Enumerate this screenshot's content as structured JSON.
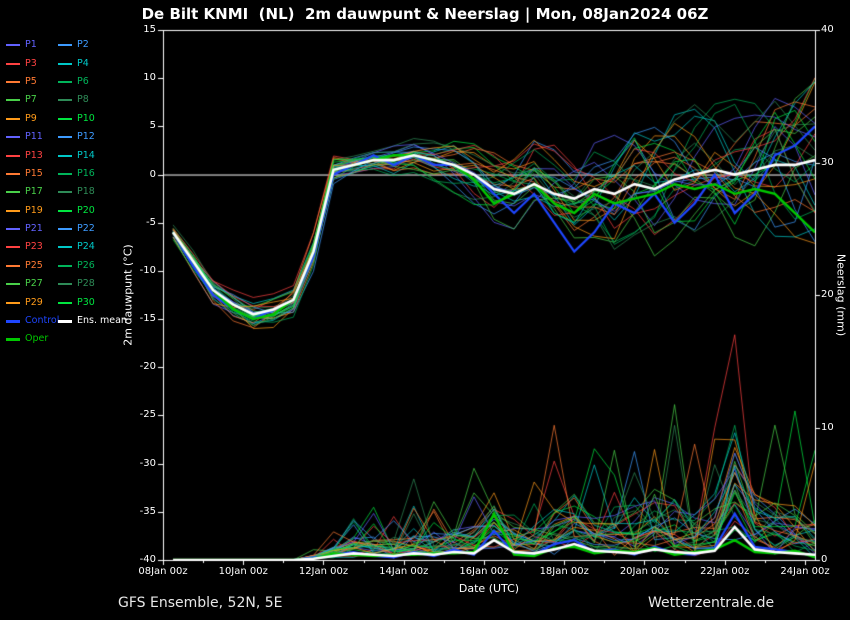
{
  "footer": {
    "left": "GFS Ensemble, 52N, 5E",
    "right": "Wetterzentrale.de"
  },
  "chart_data": {
    "type": "line",
    "title": "De Bilt KNMI  (NL)  2m dauwpunt & Neerslag | Mon, 08Jan2024 06Z",
    "x_axis": {
      "label": "Date (UTC)",
      "range_hours": [
        0,
        390
      ],
      "major_tick_hours": 48,
      "minor_tick_hours": 24,
      "tick_labels": [
        "08Jan 00z",
        "10Jan 00z",
        "12Jan 00z",
        "14Jan 00z",
        "16Jan 00z",
        "18Jan 00z",
        "20Jan 00z",
        "22Jan 00z",
        "24Jan 00z"
      ]
    },
    "y_left": {
      "label": "2m dauwpunt (°C)",
      "min": -40,
      "max": 15,
      "tick_step": 5,
      "tick_labels": [
        "15",
        "10",
        "5",
        "0",
        "-5",
        "-10",
        "-15",
        "-20",
        "-25",
        "-30",
        "-35",
        "-40"
      ]
    },
    "y_right": {
      "label": "Neerslag (mm)",
      "min": 0,
      "max": 40,
      "tick_step": 10,
      "tick_labels": [
        "40",
        "30",
        "20",
        "10",
        "0"
      ]
    },
    "grid": false,
    "legend_position": "left",
    "series": {
      "x_hours_start": 6,
      "x_hours_step": 12,
      "ens_mean_dew": [
        -6,
        -9,
        -12,
        -13.5,
        -14.5,
        -14,
        -13,
        -8,
        0.5,
        1,
        1.5,
        1.5,
        2,
        1.5,
        1,
        0,
        -1.5,
        -2,
        -1,
        -2,
        -2.5,
        -1.5,
        -2,
        -1,
        -1.5,
        -0.5,
        0,
        0.5,
        0,
        0.5,
        1,
        1,
        1.5
      ],
      "control_dew": [
        -6,
        -9.5,
        -12.5,
        -14,
        -15,
        -14,
        -13,
        -8.5,
        0,
        1,
        2,
        1,
        2,
        1,
        1,
        0,
        -2,
        -4,
        -2,
        -5,
        -8,
        -6,
        -3,
        -4,
        -2,
        -5,
        -3,
        0,
        -4,
        -2,
        2,
        3,
        5
      ],
      "oper_dew": [
        -6,
        -9,
        -12,
        -14,
        -15,
        -14.5,
        -13,
        -8,
        0.5,
        1,
        1.5,
        2,
        2,
        1.5,
        1,
        -0.5,
        -3,
        -2,
        -1,
        -3,
        -4,
        -2,
        -3,
        -2.5,
        -2,
        -1,
        -1.5,
        -1,
        -2,
        -1.5,
        -2,
        -4,
        -6
      ],
      "spread_dew": [
        0.5,
        1,
        1.5,
        1.5,
        1.5,
        1.5,
        1.5,
        2,
        1.5,
        1,
        1,
        1.5,
        1.5,
        2,
        2.5,
        3,
        3.5,
        4,
        4.5,
        5,
        5.5,
        5.5,
        6,
        6,
        6.5,
        6.5,
        7,
        7,
        7.5,
        7.5,
        8,
        8,
        8
      ],
      "ens_mean_precip": [
        0,
        0,
        0,
        0,
        0,
        0,
        0,
        0.1,
        0.3,
        0.5,
        0.4,
        0.3,
        0.5,
        0.4,
        0.6,
        0.5,
        1.5,
        0.6,
        0.5,
        0.8,
        1.2,
        0.7,
        0.6,
        0.5,
        0.8,
        0.6,
        0.5,
        0.7,
        2.5,
        0.8,
        0.6,
        0.5,
        0.4
      ],
      "control_precip": [
        0,
        0,
        0,
        0,
        0,
        0,
        0,
        0.2,
        0.4,
        0.6,
        0.3,
        0.2,
        0.6,
        0.3,
        0.8,
        0.4,
        2.2,
        0.5,
        0.4,
        1.2,
        1.5,
        0.6,
        0.8,
        0.4,
        1,
        0.5,
        0.4,
        0.9,
        3.5,
        1,
        0.8,
        0.6,
        0.3
      ],
      "oper_precip": [
        0,
        0,
        0,
        0,
        0,
        0,
        0,
        0.1,
        0.5,
        0.4,
        0.3,
        0.4,
        0.4,
        0.5,
        0.5,
        0.6,
        3.5,
        0.4,
        0.3,
        0.9,
        1,
        0.5,
        0.7,
        0.6,
        0.9,
        0.4,
        0.6,
        0.8,
        1.5,
        0.6,
        0.5,
        0.7,
        0.2
      ],
      "spread_precip": [
        0,
        0,
        0,
        0,
        0,
        0,
        0,
        0.2,
        0.5,
        0.8,
        0.8,
        0.8,
        1,
        1,
        1.2,
        1.5,
        2,
        1.5,
        1.5,
        2,
        2.5,
        2,
        2,
        2,
        2.5,
        2.5,
        2,
        2.5,
        4,
        2.5,
        2,
        2,
        1.5
      ]
    },
    "members": [
      {
        "name": "P1",
        "color": "#6262ff",
        "seed": 50
      },
      {
        "name": "P2",
        "color": "#3d9bff",
        "seed": 87
      },
      {
        "name": "P3",
        "color": "#ff4242",
        "seed": 124
      },
      {
        "name": "P4",
        "color": "#00c8c8",
        "seed": 161
      },
      {
        "name": "P5",
        "color": "#ff7a33",
        "seed": 198
      },
      {
        "name": "P6",
        "color": "#00b45a",
        "seed": 235
      },
      {
        "name": "P7",
        "color": "#49d049",
        "seed": 272
      },
      {
        "name": "P8",
        "color": "#2e8b57",
        "seed": 309
      },
      {
        "name": "P9",
        "color": "#ff9b1a",
        "seed": 346
      },
      {
        "name": "P10",
        "color": "#00e640",
        "seed": 383
      },
      {
        "name": "P11",
        "color": "#6262ff",
        "seed": 420
      },
      {
        "name": "P12",
        "color": "#3d9bff",
        "seed": 457
      },
      {
        "name": "P13",
        "color": "#ff4242",
        "seed": 494
      },
      {
        "name": "P14",
        "color": "#00c8c8",
        "seed": 531
      },
      {
        "name": "P15",
        "color": "#ff7a33",
        "seed": 568
      },
      {
        "name": "P16",
        "color": "#00b45a",
        "seed": 605
      },
      {
        "name": "P17",
        "color": "#49d049",
        "seed": 642
      },
      {
        "name": "P18",
        "color": "#2e8b57",
        "seed": 679
      },
      {
        "name": "P19",
        "color": "#ff9b1a",
        "seed": 716
      },
      {
        "name": "P20",
        "color": "#00e640",
        "seed": 753
      },
      {
        "name": "P21",
        "color": "#6262ff",
        "seed": 790
      },
      {
        "name": "P22",
        "color": "#3d9bff",
        "seed": 827
      },
      {
        "name": "P23",
        "color": "#ff4242",
        "seed": 864
      },
      {
        "name": "P24",
        "color": "#00c8c8",
        "seed": 901
      },
      {
        "name": "P25",
        "color": "#ff7a33",
        "seed": 938
      },
      {
        "name": "P26",
        "color": "#00b45a",
        "seed": 975
      },
      {
        "name": "P27",
        "color": "#49d049",
        "seed": 1012
      },
      {
        "name": "P28",
        "color": "#2e8b57",
        "seed": 1049
      },
      {
        "name": "P29",
        "color": "#ff9b1a",
        "seed": 1086
      },
      {
        "name": "P30",
        "color": "#00e640",
        "seed": 1123
      }
    ],
    "specials": [
      {
        "name": "Control",
        "color": "#1e46ff",
        "width": 2.2
      },
      {
        "name": "Ens. mean",
        "color": "#ffffff",
        "width": 2.6
      },
      {
        "name": "Oper",
        "color": "#00c800",
        "width": 2.4
      }
    ],
    "colors": {
      "background": "#000000",
      "frame": "#ffffff",
      "zero_line": "#ffffff",
      "text": "#ffffff"
    }
  }
}
